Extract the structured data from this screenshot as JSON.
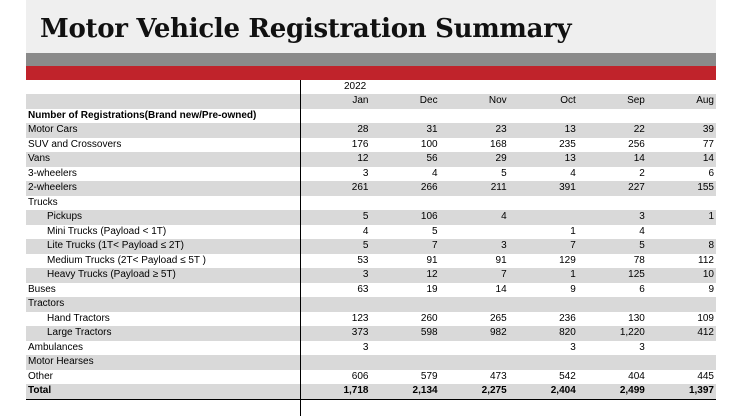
{
  "title": "Motor Vehicle Registration Summary",
  "year": "2022",
  "months": [
    "Jan",
    "Dec",
    "Nov",
    "Oct",
    "Sep",
    "Aug"
  ],
  "rows": [
    {
      "label": "Number of Registrations(Brand new/Pre-owned)",
      "values": [
        "",
        "",
        "",
        "",
        "",
        ""
      ],
      "indent": false,
      "bold": true
    },
    {
      "label": "Motor Cars",
      "values": [
        "28",
        "31",
        "23",
        "13",
        "22",
        "39"
      ],
      "indent": false
    },
    {
      "label": "SUV and Crossovers",
      "values": [
        "176",
        "100",
        "168",
        "235",
        "256",
        "77"
      ],
      "indent": false
    },
    {
      "label": "Vans",
      "values": [
        "12",
        "56",
        "29",
        "13",
        "14",
        "14"
      ],
      "indent": false
    },
    {
      "label": "3-wheelers",
      "values": [
        "3",
        "4",
        "5",
        "4",
        "2",
        "6"
      ],
      "indent": false
    },
    {
      "label": "2-wheelers",
      "values": [
        "261",
        "266",
        "211",
        "391",
        "227",
        "155"
      ],
      "indent": false
    },
    {
      "label": "Trucks",
      "values": [
        "",
        "",
        "",
        "",
        "",
        ""
      ],
      "indent": false
    },
    {
      "label": "Pickups",
      "values": [
        "5",
        "106",
        "4",
        "",
        "3",
        "1"
      ],
      "indent": true
    },
    {
      "label": "Mini Trucks (Payload < 1T)",
      "values": [
        "4",
        "5",
        "",
        "1",
        "4",
        ""
      ],
      "indent": true
    },
    {
      "label": "Lite Trucks (1T< Payload  ≤ 2T)",
      "values": [
        "5",
        "7",
        "3",
        "7",
        "5",
        "8"
      ],
      "indent": true
    },
    {
      "label": "Medium Trucks (2T< Payload  ≤ 5T )",
      "values": [
        "53",
        "91",
        "91",
        "129",
        "78",
        "112"
      ],
      "indent": true
    },
    {
      "label": "Heavy Trucks (Payload  ≥ 5T)",
      "values": [
        "3",
        "12",
        "7",
        "1",
        "125",
        "10"
      ],
      "indent": true
    },
    {
      "label": "Buses",
      "values": [
        "63",
        "19",
        "14",
        "9",
        "6",
        "9"
      ],
      "indent": false
    },
    {
      "label": "Tractors",
      "values": [
        "",
        "",
        "",
        "",
        "",
        ""
      ],
      "indent": false
    },
    {
      "label": "Hand Tractors",
      "values": [
        "123",
        "260",
        "265",
        "236",
        "130",
        "109"
      ],
      "indent": true
    },
    {
      "label": "Large Tractors",
      "values": [
        "373",
        "598",
        "982",
        "820",
        "1,220",
        "412"
      ],
      "indent": true
    },
    {
      "label": "Ambulances",
      "values": [
        "3",
        "",
        "",
        "3",
        "3",
        ""
      ],
      "indent": false
    },
    {
      "label": "Motor Hearses",
      "values": [
        "",
        "",
        "",
        "",
        "",
        ""
      ],
      "indent": false
    },
    {
      "label": "Other",
      "values": [
        "606",
        "579",
        "473",
        "542",
        "404",
        "445"
      ],
      "indent": false
    },
    {
      "label": "Total",
      "values": [
        "1,718",
        "2,134",
        "2,275",
        "2,404",
        "2,499",
        "1,397"
      ],
      "indent": false,
      "total": true
    }
  ],
  "colors": {
    "title_band": "#efefef",
    "gray_bar": "#8a8a8a",
    "red_bar": "#c0232b",
    "row_shade": "#d9d9d9"
  }
}
